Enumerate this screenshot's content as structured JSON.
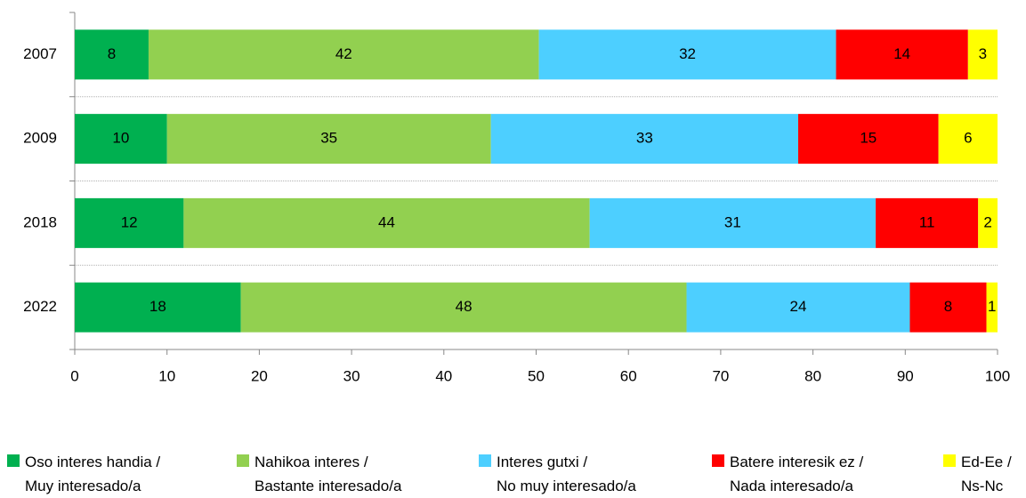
{
  "chart_data": {
    "type": "stacked-bar-horizontal",
    "categories": [
      "2007",
      "2009",
      "2018",
      "2022"
    ],
    "series": [
      {
        "name": "Oso interes handia /\nMuy interesado/a",
        "color": "#00b050",
        "values": [
          8.0,
          10.0,
          11.8,
          18.0
        ],
        "value_labels": [
          "8",
          "10",
          "12",
          "18"
        ]
      },
      {
        "name": "Nahikoa interes /\nBastante interesado/a",
        "color": "#92d050",
        "values": [
          42.3,
          35.1,
          44.0,
          48.3
        ],
        "value_labels": [
          "42",
          "35",
          "44",
          "48"
        ]
      },
      {
        "name": "Interes gutxi /\nNo muy interesado/a",
        "color": "#4dcfff",
        "values": [
          32.2,
          33.3,
          31.0,
          24.2
        ],
        "value_labels": [
          "32",
          "33",
          "31",
          "24"
        ]
      },
      {
        "name": "Batere interesik ez /\nNada interesado/a",
        "color": "#ff0000",
        "values": [
          14.3,
          15.2,
          11.1,
          8.3
        ],
        "value_labels": [
          "14",
          "15",
          "11",
          "8"
        ]
      },
      {
        "name": "Ed-Ee /\nNs-Nc",
        "color": "#ffff00",
        "values": [
          3.2,
          6.4,
          2.1,
          1.2
        ],
        "value_labels": [
          "3",
          "6",
          "2",
          "1"
        ]
      }
    ],
    "xlim": [
      0,
      100
    ],
    "xticks": [
      0,
      10,
      20,
      30,
      40,
      50,
      60,
      70,
      80,
      90,
      100
    ],
    "legend": "bottom"
  }
}
